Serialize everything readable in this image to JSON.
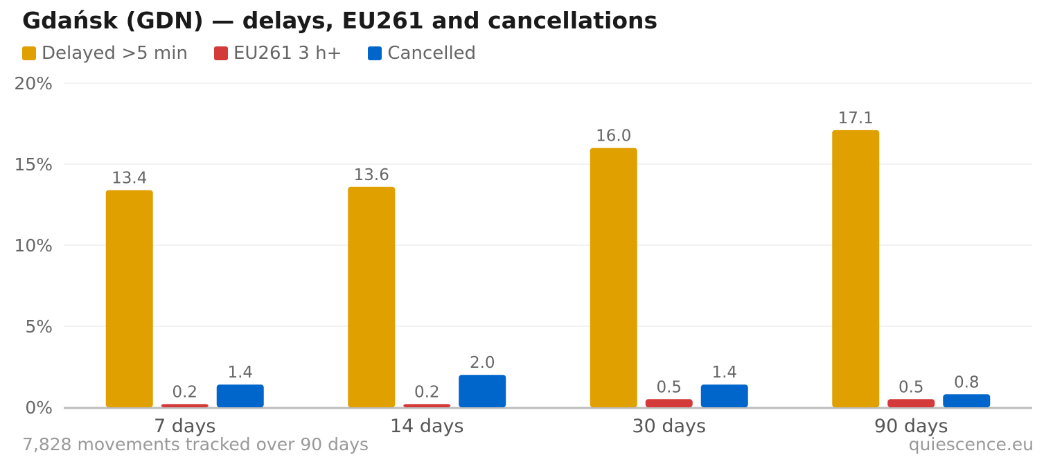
{
  "title": "Gdańsk (GDN) — delays, EU261 and cancellations",
  "footnote": "7,828 movements tracked over 90 days",
  "source": "quiescence.eu",
  "chart_data": {
    "type": "bar",
    "categories": [
      "7 days",
      "14 days",
      "30 days",
      "90 days"
    ],
    "series": [
      {
        "name": "Delayed >5 min",
        "color": "#E0A000",
        "values": [
          13.4,
          13.6,
          16.0,
          17.1
        ],
        "labels": [
          "13.4",
          "13.6",
          "16.0",
          "17.1"
        ]
      },
      {
        "name": "EU261 3 h+",
        "color": "#D43A3A",
        "values": [
          0.2,
          0.2,
          0.5,
          0.5
        ],
        "labels": [
          "0.2",
          "0.2",
          "0.5",
          "0.5"
        ]
      },
      {
        "name": "Cancelled",
        "color": "#0066CC",
        "values": [
          1.4,
          2.0,
          1.4,
          0.8
        ],
        "labels": [
          "1.4",
          "2.0",
          "1.4",
          "0.8"
        ]
      }
    ],
    "yticks": [
      0,
      5,
      10,
      15,
      20
    ],
    "ytick_labels": [
      "0%",
      "5%",
      "10%",
      "15%",
      "20%"
    ],
    "ylim": [
      0,
      20
    ],
    "grid": true,
    "legend_position": "top-left"
  }
}
